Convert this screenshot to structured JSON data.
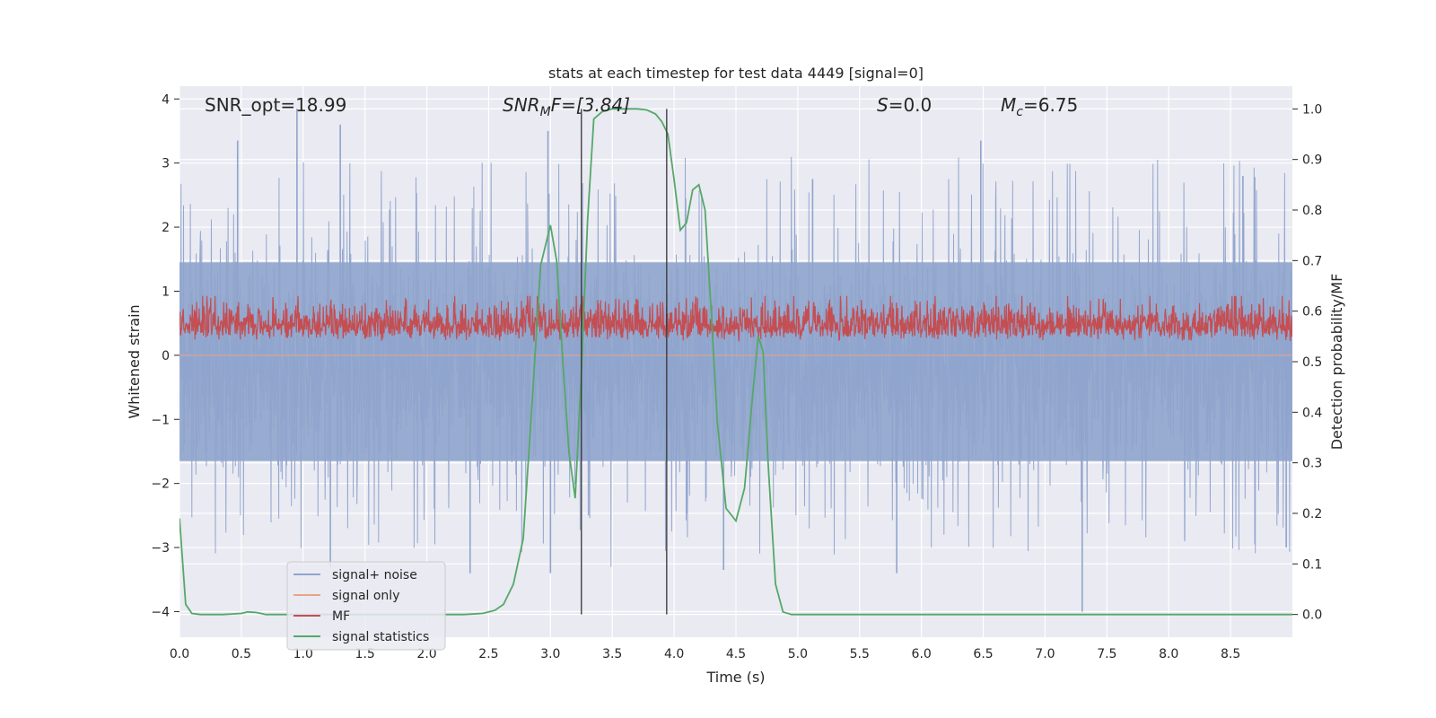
{
  "chart_data": {
    "type": "line",
    "title": "stats at each timestep for test data 4449 [signal=0]",
    "xlabel": "Time (s)",
    "ylabel": "Whitened strain",
    "y2label": "Detection probability/MF",
    "xlim": [
      0.0,
      9.0
    ],
    "ylim": [
      -4.4,
      4.2
    ],
    "y2lim": [
      -0.045,
      1.045
    ],
    "x_ticks": [
      "0.0",
      "0.5",
      "1.0",
      "1.5",
      "2.0",
      "2.5",
      "3.0",
      "3.5",
      "4.0",
      "4.5",
      "5.0",
      "5.5",
      "6.0",
      "6.5",
      "7.0",
      "7.5",
      "8.0",
      "8.5"
    ],
    "y_ticks": [
      "4",
      "3",
      "2",
      "1",
      "0",
      "−1",
      "−2",
      "−3",
      "−4"
    ],
    "y2_ticks": [
      "1.0",
      "0.9",
      "0.8",
      "0.7",
      "0.6",
      "0.5",
      "0.4",
      "0.3",
      "0.2",
      "0.1",
      "0.0"
    ],
    "grid": true,
    "legend_position": "lower-left",
    "annotations": {
      "snr_opt": "SNR_opt=18.99",
      "snr_mf_name": "SNR",
      "snr_mf_sub": "M",
      "snr_mf_tail": "F=[3.84]",
      "s_name": "S",
      "s_value": "=0.0",
      "mc_name": "M",
      "mc_sub": "c",
      "mc_value": "=6.75"
    },
    "vertical_lines_x": [
      3.25,
      3.94
    ],
    "series": [
      {
        "name": "signal+ noise",
        "axis": "left",
        "color": "#8fa4cc",
        "description": "noise band spanning approx -1.7..1.5 with spikes to about 3.9 / -4.0",
        "spikes": [
          {
            "x": 0.47,
            "y": 3.35
          },
          {
            "x": 0.95,
            "y": 3.85
          },
          {
            "x": 1.3,
            "y": 3.6
          },
          {
            "x": 2.98,
            "y": 3.5
          },
          {
            "x": 6.48,
            "y": 3.35
          },
          {
            "x": 5.12,
            "y": 2.75
          },
          {
            "x": 8.6,
            "y": 2.8
          },
          {
            "x": 5.8,
            "y": -3.4
          },
          {
            "x": 7.3,
            "y": -4.0
          },
          {
            "x": 3.0,
            "y": -3.4
          },
          {
            "x": 4.4,
            "y": -3.35
          },
          {
            "x": 2.35,
            "y": -3.4
          },
          {
            "x": 1.22,
            "y": -3.3
          },
          {
            "x": 8.95,
            "y": -3.0
          }
        ]
      },
      {
        "name": "signal only",
        "axis": "left",
        "color": "#e8a488",
        "x": [
          0,
          9
        ],
        "y": [
          0,
          0
        ]
      },
      {
        "name": "MF",
        "axis": "right",
        "color": "#c44e52",
        "description": "dense band spanning approx 0.5..0.62 on right axis"
      },
      {
        "name": "signal statistics",
        "axis": "right",
        "color": "#55a868",
        "x": [
          0.0,
          0.05,
          0.1,
          0.17,
          0.25,
          0.35,
          0.5,
          0.55,
          0.62,
          0.7,
          0.8,
          1.0,
          1.5,
          2.0,
          2.3,
          2.45,
          2.55,
          2.62,
          2.7,
          2.78,
          2.86,
          2.92,
          3.0,
          3.05,
          3.1,
          3.15,
          3.2,
          3.25,
          3.3,
          3.35,
          3.42,
          3.5,
          3.6,
          3.7,
          3.78,
          3.85,
          3.9,
          3.95,
          4.0,
          4.05,
          4.1,
          4.15,
          4.2,
          4.25,
          4.3,
          4.35,
          4.42,
          4.5,
          4.57,
          4.63,
          4.68,
          4.72,
          4.76,
          4.82,
          4.88,
          4.95,
          5.0,
          6.0,
          7.0,
          8.0,
          9.0
        ],
        "y": [
          0.19,
          0.02,
          0.002,
          0.0,
          0.0,
          0.0,
          0.002,
          0.005,
          0.004,
          0.0,
          0.0,
          0.0,
          0.0,
          0.0,
          0.0,
          0.002,
          0.008,
          0.02,
          0.06,
          0.15,
          0.45,
          0.69,
          0.77,
          0.7,
          0.5,
          0.32,
          0.23,
          0.48,
          0.78,
          0.98,
          0.995,
          1.0,
          1.0,
          1.0,
          0.998,
          0.99,
          0.975,
          0.95,
          0.86,
          0.76,
          0.775,
          0.84,
          0.85,
          0.8,
          0.6,
          0.38,
          0.21,
          0.185,
          0.25,
          0.42,
          0.55,
          0.52,
          0.3,
          0.06,
          0.005,
          0.0,
          0.0,
          0.0,
          0.0,
          0.0,
          0.0
        ]
      }
    ]
  }
}
